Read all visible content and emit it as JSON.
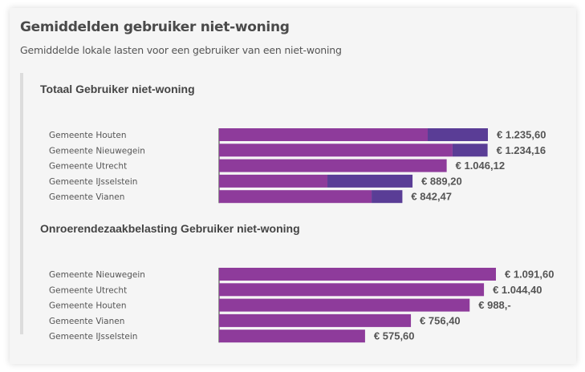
{
  "card": {
    "title": "Gemiddelden gebruiker niet-woning",
    "subtitle": "Gemiddelde lokale lasten voor een gebruiker van een niet-woning"
  },
  "colors": {
    "primary": "#8e3b9b",
    "secondary": "#5a3d96"
  },
  "chart_data": [
    {
      "type": "bar",
      "orientation": "horizontal",
      "stacked": true,
      "title": "Totaal Gebruiker niet-woning",
      "categories": [
        "Gemeente Houten",
        "Gemeente Nieuwegein",
        "Gemeente Utrecht",
        "Gemeente IJsselstein",
        "Gemeente Vianen"
      ],
      "series": [
        {
          "values": [
            959,
            1073,
            1046.12,
            498,
            701
          ],
          "color": "#8e3b9b"
        },
        {
          "values": [
            276.6,
            161.16,
            0,
            391.2,
            141.47
          ],
          "color": "#5a3d96"
        }
      ],
      "totals": [
        1235.6,
        1234.16,
        1046.12,
        889.2,
        842.47
      ],
      "value_labels": [
        "€ 1.235,60",
        "€ 1.234,16",
        "€ 1.046,12",
        "€ 889,20",
        "€ 842,47"
      ],
      "xlim": [
        0,
        1235.6
      ]
    },
    {
      "type": "bar",
      "orientation": "horizontal",
      "title": "Onroerendezaakbelasting Gebruiker niet-woning",
      "categories": [
        "Gemeente Nieuwegein",
        "Gemeente Utrecht",
        "Gemeente Houten",
        "Gemeente Vianen",
        "Gemeente IJsselstein"
      ],
      "series": [
        {
          "values": [
            1091.6,
            1044.4,
            988,
            756.4,
            575.6
          ],
          "color": "#8e3b9b"
        }
      ],
      "totals": [
        1091.6,
        1044.4,
        988,
        756.4,
        575.6
      ],
      "value_labels": [
        "€ 1.091,60",
        "€ 1.044,40",
        "€ 988,-",
        "€ 756,40",
        "€ 575,60"
      ],
      "xlim": [
        0,
        1091.6
      ]
    }
  ]
}
